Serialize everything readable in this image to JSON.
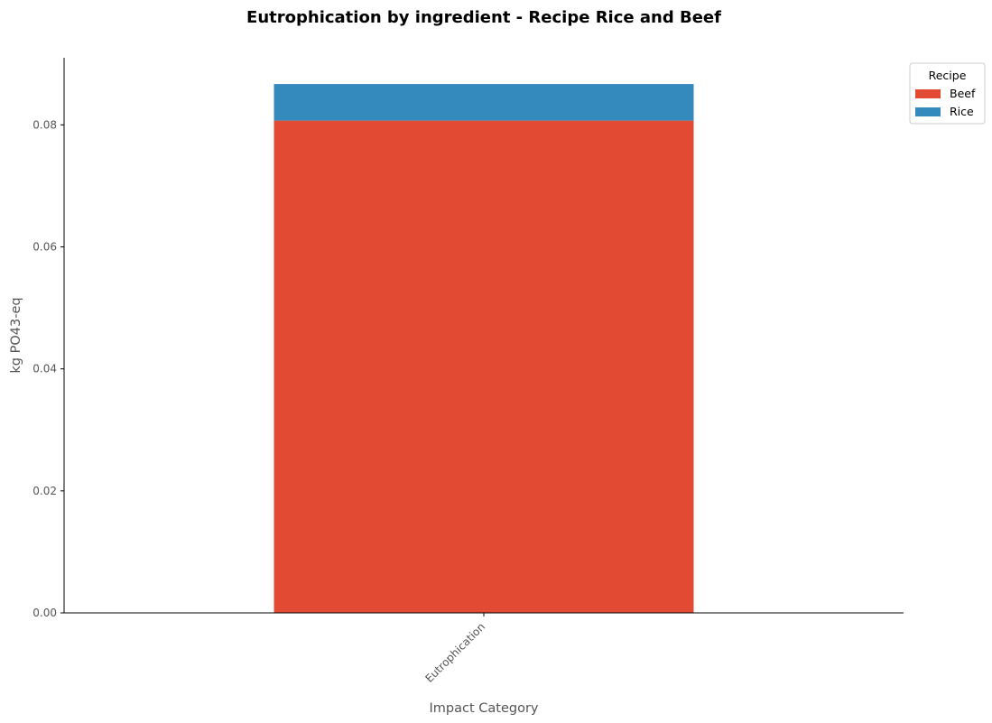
{
  "chart_data": {
    "type": "bar",
    "stacked": true,
    "title": "Eutrophication by ingredient - Recipe Rice and Beef",
    "xlabel": "Impact Category",
    "ylabel": "kg PO43-eq",
    "categories": [
      "Eutrophication"
    ],
    "series": [
      {
        "name": "Beef",
        "values": [
          0.0807
        ],
        "color": "#e24a33"
      },
      {
        "name": "Rice",
        "values": [
          0.006
        ],
        "color": "#348abd"
      }
    ],
    "ylim": [
      0,
      0.091
    ],
    "yticks": [
      0.0,
      0.02,
      0.04,
      0.06,
      0.08
    ],
    "ytick_labels": [
      "0.00",
      "0.02",
      "0.04",
      "0.06",
      "0.08"
    ],
    "grid": false,
    "legend": {
      "title": "Recipe",
      "placement": "outside-top-right"
    }
  }
}
